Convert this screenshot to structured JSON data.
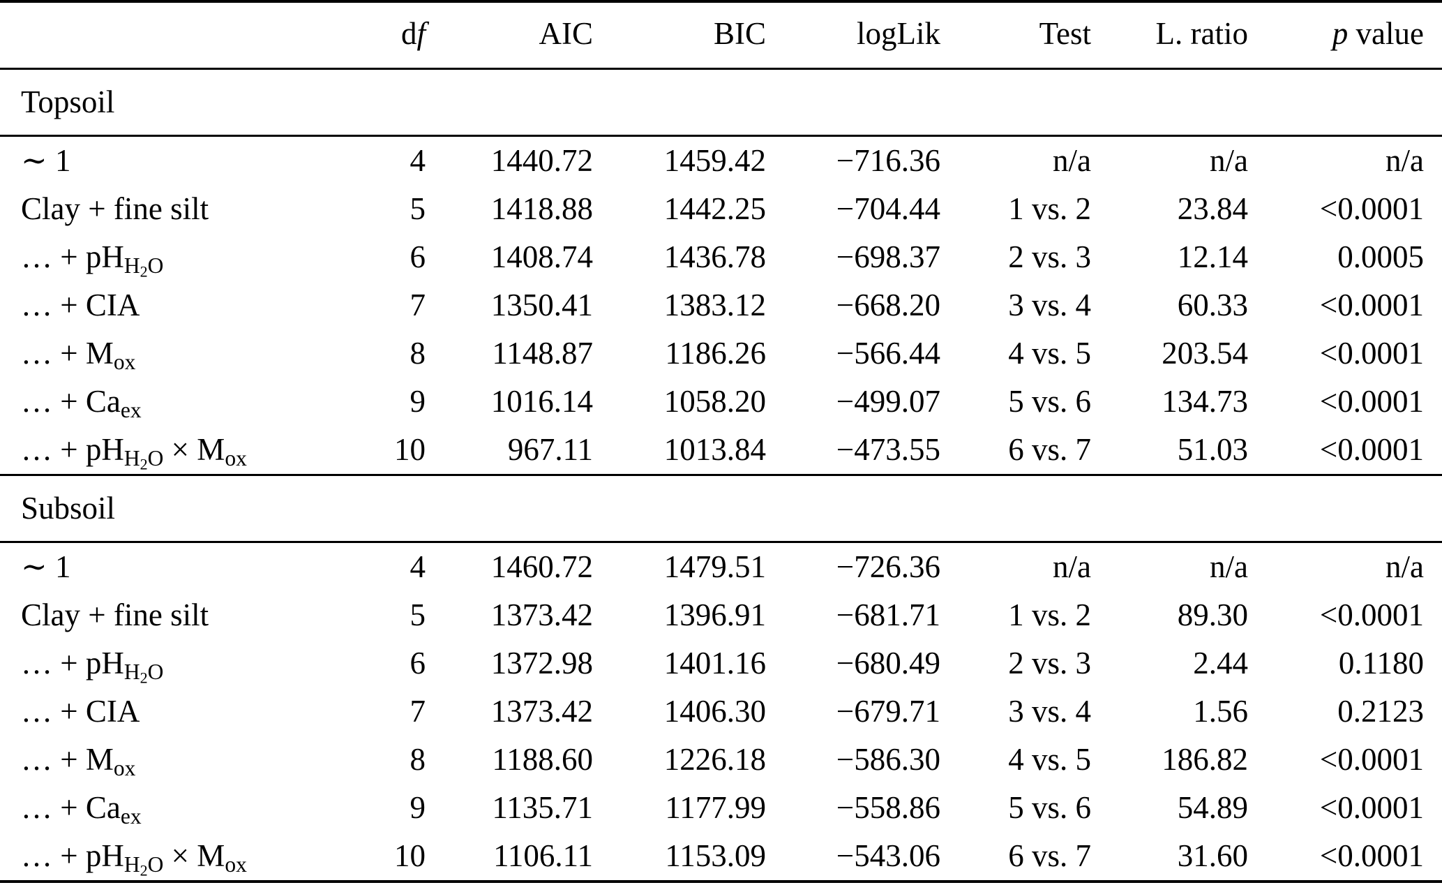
{
  "table": {
    "colors": {
      "text": "#000000",
      "background": "#ffffff",
      "rule": "#000000"
    },
    "columns": [
      {
        "pre": ""
      },
      {
        "pre": "d",
        "italic": "f"
      },
      {
        "pre": "AIC"
      },
      {
        "pre": "BIC"
      },
      {
        "pre": "logLik"
      },
      {
        "pre": "Test"
      },
      {
        "pre": "L. ratio"
      },
      {
        "italic": "p",
        "post": " value"
      }
    ],
    "cell_keys": [
      "model",
      "df",
      "aic",
      "bic",
      "loglik",
      "test",
      "lratio",
      "pvalue"
    ],
    "sections": [
      {
        "title": "Topsoil",
        "rows": [
          {
            "model": "∼ 1",
            "df": "4",
            "aic": "1440.72",
            "bic": "1459.42",
            "loglik": "−716.36",
            "test": "n/a",
            "lratio": "n/a",
            "pvalue": "n/a"
          },
          {
            "model": "Clay + fine silt",
            "df": "5",
            "aic": "1418.88",
            "bic": "1442.25",
            "loglik": "−704.44",
            "test": "1 vs. 2",
            "lratio": "23.84",
            "pvalue": "<0.0001"
          },
          {
            "model": "… + pH_{H_{2}O}",
            "df": "6",
            "aic": "1408.74",
            "bic": "1436.78",
            "loglik": "−698.37",
            "test": "2 vs. 3",
            "lratio": "12.14",
            "pvalue": "0.0005"
          },
          {
            "model": "… + CIA",
            "df": "7",
            "aic": "1350.41",
            "bic": "1383.12",
            "loglik": "−668.20",
            "test": "3 vs. 4",
            "lratio": "60.33",
            "pvalue": "<0.0001"
          },
          {
            "model": "… + M_{ox}",
            "df": "8",
            "aic": "1148.87",
            "bic": "1186.26",
            "loglik": "−566.44",
            "test": "4 vs. 5",
            "lratio": "203.54",
            "pvalue": "<0.0001"
          },
          {
            "model": "… + Ca_{ex}",
            "df": "9",
            "aic": "1016.14",
            "bic": "1058.20",
            "loglik": "−499.07",
            "test": "5 vs. 6",
            "lratio": "134.73",
            "pvalue": "<0.0001"
          },
          {
            "model": "… + pH_{H_{2}O} × M_{ox}",
            "df": "10",
            "aic": "967.11",
            "bic": "1013.84",
            "loglik": "−473.55",
            "test": "6 vs. 7",
            "lratio": "51.03",
            "pvalue": "<0.0001"
          }
        ]
      },
      {
        "title": "Subsoil",
        "rows": [
          {
            "model": "∼ 1",
            "df": "4",
            "aic": "1460.72",
            "bic": "1479.51",
            "loglik": "−726.36",
            "test": "n/a",
            "lratio": "n/a",
            "pvalue": "n/a"
          },
          {
            "model": "Clay + fine silt",
            "df": "5",
            "aic": "1373.42",
            "bic": "1396.91",
            "loglik": "−681.71",
            "test": "1 vs. 2",
            "lratio": "89.30",
            "pvalue": "<0.0001"
          },
          {
            "model": "… + pH_{H_{2}O}",
            "df": "6",
            "aic": "1372.98",
            "bic": "1401.16",
            "loglik": "−680.49",
            "test": "2 vs. 3",
            "lratio": "2.44",
            "pvalue": "0.1180"
          },
          {
            "model": "… + CIA",
            "df": "7",
            "aic": "1373.42",
            "bic": "1406.30",
            "loglik": "−679.71",
            "test": "3 vs. 4",
            "lratio": "1.56",
            "pvalue": "0.2123"
          },
          {
            "model": "… + M_{ox}",
            "df": "8",
            "aic": "1188.60",
            "bic": "1226.18",
            "loglik": "−586.30",
            "test": "4 vs. 5",
            "lratio": "186.82",
            "pvalue": "<0.0001"
          },
          {
            "model": "… + Ca_{ex}",
            "df": "9",
            "aic": "1135.71",
            "bic": "1177.99",
            "loglik": "−558.86",
            "test": "5 vs. 6",
            "lratio": "54.89",
            "pvalue": "<0.0001"
          },
          {
            "model": "… + pH_{H_{2}O} × M_{ox}",
            "df": "10",
            "aic": "1106.11",
            "bic": "1153.09",
            "loglik": "−543.06",
            "test": "6 vs. 7",
            "lratio": "31.60",
            "pvalue": "<0.0001"
          }
        ]
      }
    ]
  }
}
